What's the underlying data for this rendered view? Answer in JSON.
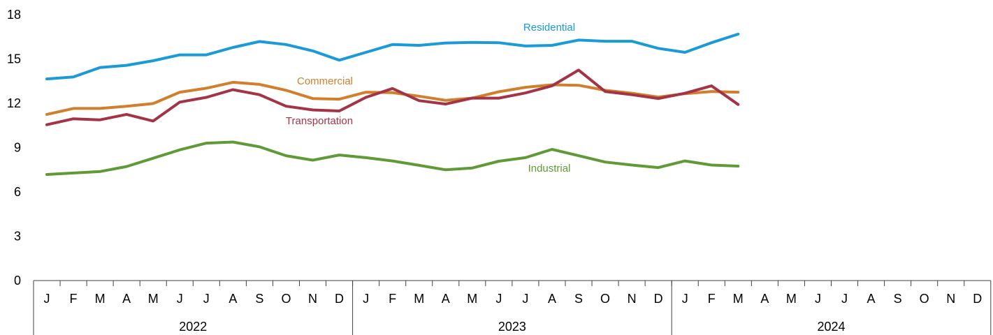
{
  "chart_data": {
    "type": "line",
    "title": "",
    "xlabel": "",
    "ylabel": "",
    "ylim": [
      0,
      18
    ],
    "y_ticks": [
      "0",
      "3",
      "6",
      "9",
      "12",
      "15",
      "18"
    ],
    "grid": false,
    "legend": "none (inline series labels)",
    "years": [
      {
        "label": "2022",
        "months": [
          "J",
          "F",
          "M",
          "A",
          "M",
          "J",
          "J",
          "A",
          "S",
          "O",
          "N",
          "D"
        ]
      },
      {
        "label": "2023",
        "months": [
          "J",
          "F",
          "M",
          "A",
          "M",
          "J",
          "J",
          "A",
          "S",
          "O",
          "N",
          "D"
        ]
      },
      {
        "label": "2024",
        "months": [
          "J",
          "F",
          "M",
          "A",
          "M",
          "J",
          "J",
          "A",
          "S",
          "O",
          "N",
          "D"
        ]
      }
    ],
    "series": [
      {
        "name": "Residential",
        "color": "#1a9ad6",
        "values": [
          13.65,
          13.78,
          14.42,
          14.57,
          14.88,
          15.28,
          15.28,
          15.78,
          16.18,
          15.98,
          15.55,
          14.92,
          15.45,
          15.98,
          15.92,
          16.08,
          16.12,
          16.1,
          15.88,
          15.92,
          16.28,
          16.2,
          16.2,
          15.72,
          15.45,
          16.1,
          16.68
        ]
      },
      {
        "name": "Commercial",
        "color": "#d17f2d",
        "values": [
          11.25,
          11.65,
          11.65,
          11.8,
          11.98,
          12.75,
          13.02,
          13.42,
          13.28,
          12.88,
          12.32,
          12.28,
          12.75,
          12.72,
          12.48,
          12.2,
          12.35,
          12.78,
          13.08,
          13.25,
          13.22,
          12.88,
          12.68,
          12.42,
          12.65,
          12.8,
          12.75
        ]
      },
      {
        "name": "Transportation",
        "color": "#a33446",
        "values": [
          10.55,
          10.95,
          10.88,
          11.25,
          10.8,
          12.08,
          12.4,
          12.92,
          12.58,
          11.8,
          11.55,
          11.48,
          12.4,
          13,
          12.18,
          11.95,
          12.35,
          12.35,
          12.7,
          13.18,
          14.25,
          12.8,
          12.58,
          12.32,
          12.68,
          13.18,
          11.92
        ]
      },
      {
        "name": "Industrial",
        "color": "#5f9a36",
        "values": [
          7.18,
          7.28,
          7.38,
          7.72,
          8.28,
          8.85,
          9.3,
          9.38,
          9.05,
          8.45,
          8.15,
          8.5,
          8.32,
          8.1,
          7.8,
          7.5,
          7.62,
          8.08,
          8.32,
          8.88,
          8.45,
          8.02,
          7.82,
          7.65,
          8.1,
          7.82,
          7.75
        ]
      }
    ],
    "annotations": [
      {
        "series": "Residential",
        "text": "Residential"
      },
      {
        "series": "Commercial",
        "text": "Commercial"
      },
      {
        "series": "Transportation",
        "text": "Transportation"
      },
      {
        "series": "Industrial",
        "text": "Industrial"
      }
    ]
  }
}
